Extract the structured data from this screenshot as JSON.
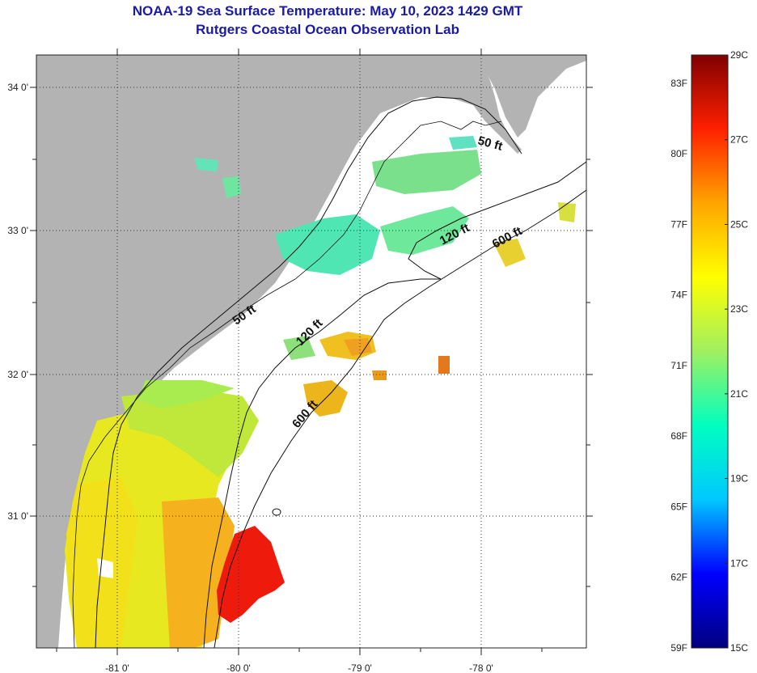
{
  "title": {
    "line1": "NOAA-19 Sea Surface Temperature:  May 10, 2023 1429 GMT",
    "line2": "Rutgers Coastal Ocean Observation Lab"
  },
  "map": {
    "lon_labels": [
      "-81 0'",
      "-80 0'",
      "-79 0'",
      "-78 0'"
    ],
    "lat_labels": [
      "34 0'",
      "33 0'",
      "32 0'",
      "31 0'"
    ],
    "contour_labels": [
      {
        "text": "50 ft"
      },
      {
        "text": "50 ft"
      },
      {
        "text": "120 ft"
      },
      {
        "text": "120 ft"
      },
      {
        "text": "600 ft"
      },
      {
        "text": "600 ft"
      }
    ],
    "colors": {
      "land": "#b3b3b3",
      "no_data": "#ffffff"
    }
  },
  "colorbar": {
    "fahrenheit_labels": [
      "83F",
      "80F",
      "77F",
      "74F",
      "71F",
      "68F",
      "65F",
      "62F",
      "59F"
    ],
    "celsius_labels": [
      "29C",
      "27C",
      "25C",
      "23C",
      "21C",
      "19C",
      "17C",
      "15C"
    ],
    "range_c": [
      15,
      29
    ],
    "stops": [
      "#00007f",
      "#0000ff",
      "#00c8ff",
      "#00ffc0",
      "#a0f060",
      "#ffff00",
      "#ffa500",
      "#ff2000",
      "#7f0000"
    ]
  }
}
